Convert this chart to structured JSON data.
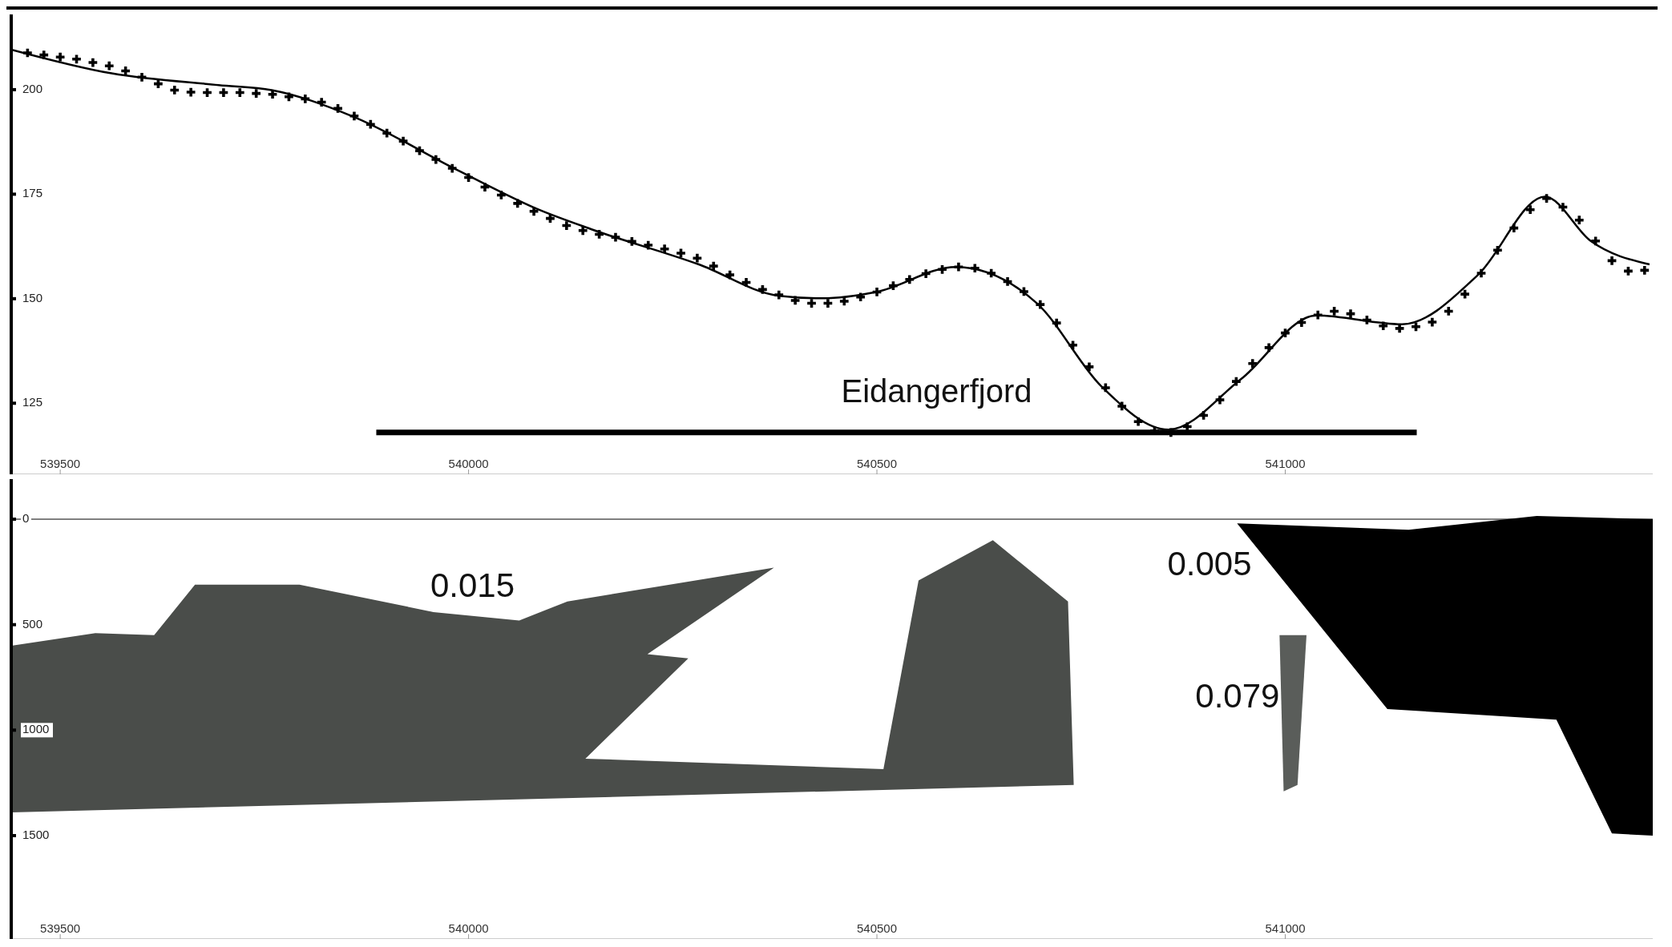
{
  "chart_data": [
    {
      "type": "scatter",
      "xlim": [
        539440,
        541450
      ],
      "xticks": [
        539500,
        540000,
        540500,
        541000
      ],
      "ylim": [
        108,
        218
      ],
      "yticks": [
        125,
        150,
        175,
        200
      ],
      "marker": "cross",
      "grid": false,
      "legend": false,
      "series": [
        {
          "color": "#000000",
          "x": [
            539460,
            539480,
            539500,
            539520,
            539540,
            539560,
            539580,
            539600,
            539620,
            539640,
            539660,
            539680,
            539700,
            539720,
            539740,
            539760,
            539780,
            539800,
            539820,
            539840,
            539860,
            539880,
            539900,
            539920,
            539940,
            539960,
            539980,
            540000,
            540020,
            540040,
            540060,
            540080,
            540100,
            540120,
            540140,
            540160,
            540180,
            540200,
            540220,
            540240,
            540260,
            540280,
            540300,
            540320,
            540340,
            540360,
            540380,
            540400,
            540420,
            540440,
            540460,
            540480,
            540500,
            540520,
            540540,
            540560,
            540580,
            540600,
            540620,
            540640,
            540660,
            540680,
            540700,
            540720,
            540740,
            540760,
            540780,
            540800,
            540820,
            540840,
            540860,
            540880,
            540900,
            540920,
            540940,
            540960,
            540980,
            541000,
            541020,
            541040,
            541060,
            541080,
            541100,
            541120,
            541140,
            541160,
            541180,
            541200,
            541220,
            541240,
            541260,
            541280,
            541300,
            541320,
            541340,
            541360,
            541380,
            541400,
            541420,
            541440
          ],
          "values": [
            208.8,
            208.3,
            207.8,
            207.3,
            206.5,
            205.7,
            204.5,
            203.0,
            201.4,
            199.9,
            199.4,
            199.3,
            199.3,
            199.3,
            199.1,
            198.9,
            198.3,
            197.8,
            197.0,
            195.5,
            193.7,
            191.7,
            189.6,
            187.7,
            185.4,
            183.3,
            181.2,
            179.0,
            176.7,
            174.8,
            172.8,
            170.9,
            169.2,
            167.5,
            166.3,
            165.4,
            164.7,
            163.7,
            162.8,
            161.9,
            160.9,
            159.7,
            157.8,
            155.7,
            153.9,
            152.2,
            150.9,
            149.6,
            148.9,
            148.9,
            149.4,
            150.4,
            151.6,
            153.1,
            154.6,
            156.0,
            157.0,
            157.6,
            157.3,
            156.1,
            154.1,
            151.7,
            148.6,
            144.2,
            138.9,
            133.7,
            128.7,
            124.3,
            120.6,
            118.4,
            118.0,
            119.4,
            122.1,
            125.8,
            130.2,
            134.5,
            138.3,
            141.8,
            144.3,
            146.1,
            147.0,
            146.4,
            144.9,
            143.5,
            142.9,
            143.3,
            144.4,
            147.0,
            151.1,
            156.1,
            161.6,
            166.9,
            171.3,
            174.0,
            171.9,
            168.8,
            163.8,
            159.1,
            156.6,
            156.8
          ]
        },
        {
          "type": "line",
          "name": "Eidangerfjord",
          "color": "#000000",
          "marker": "none",
          "x": [
            539887,
            541161
          ],
          "values": [
            118,
            118
          ]
        },
        {
          "type": "line",
          "color": "#000000",
          "marker": "none",
          "x": [
            539440,
            539563,
            539694,
            539759,
            539857,
            539988,
            540086,
            540152,
            540282,
            540380,
            540433,
            540499,
            540597,
            540696,
            540775,
            540857,
            540946,
            541038,
            541143,
            541236,
            541318,
            541374,
            541446
          ],
          "values": [
            209.6,
            203.9,
            201.1,
            199.9,
            193.7,
            180.6,
            171.3,
            166.5,
            158.2,
            150.7,
            150.1,
            151.6,
            157.6,
            148.9,
            129.0,
            118.7,
            130.8,
            146.0,
            143.9,
            155.7,
            174.4,
            163.8,
            158.2
          ]
        }
      ]
    },
    {
      "type": "area",
      "xlim": [
        539440,
        541450
      ],
      "xticks": [
        539500,
        540000,
        540500,
        541000
      ],
      "ylim": [
        1990,
        -190
      ],
      "yticks": [
        0,
        500,
        1000,
        1500
      ],
      "grid": false,
      "legend": false,
      "ref_lines": [
        {
          "axis": "y",
          "value": 0,
          "color": "#000000"
        }
      ],
      "annotations": [
        "0.015",
        "0.005",
        "0.079"
      ],
      "series": [
        {
          "color": "#4a4d4a",
          "x": [
            539440,
            539440,
            539543,
            539615,
            539665,
            539793,
            539957,
            540062,
            540121,
            540374,
            540219,
            540269,
            540143,
            540508,
            540551,
            540642,
            540734,
            540741,
            539440
          ],
          "values": [
            425,
            600,
            540,
            550,
            310,
            310,
            440,
            480,
            390,
            230,
            640,
            660,
            1135,
            1185,
            290,
            100,
            390,
            1260,
            1390
          ]
        },
        {
          "color": "#5a5d5a",
          "x": [
            540993,
            541026,
            541015,
            540998
          ],
          "values": [
            550,
            550,
            1260,
            1290
          ]
        },
        {
          "color": "#000000",
          "x": [
            540941,
            541151,
            541308,
            541450,
            541450,
            541400,
            541332,
            541125
          ],
          "values": [
            20,
            50,
            -15,
            0,
            1500,
            1490,
            950,
            900
          ]
        }
      ]
    }
  ]
}
